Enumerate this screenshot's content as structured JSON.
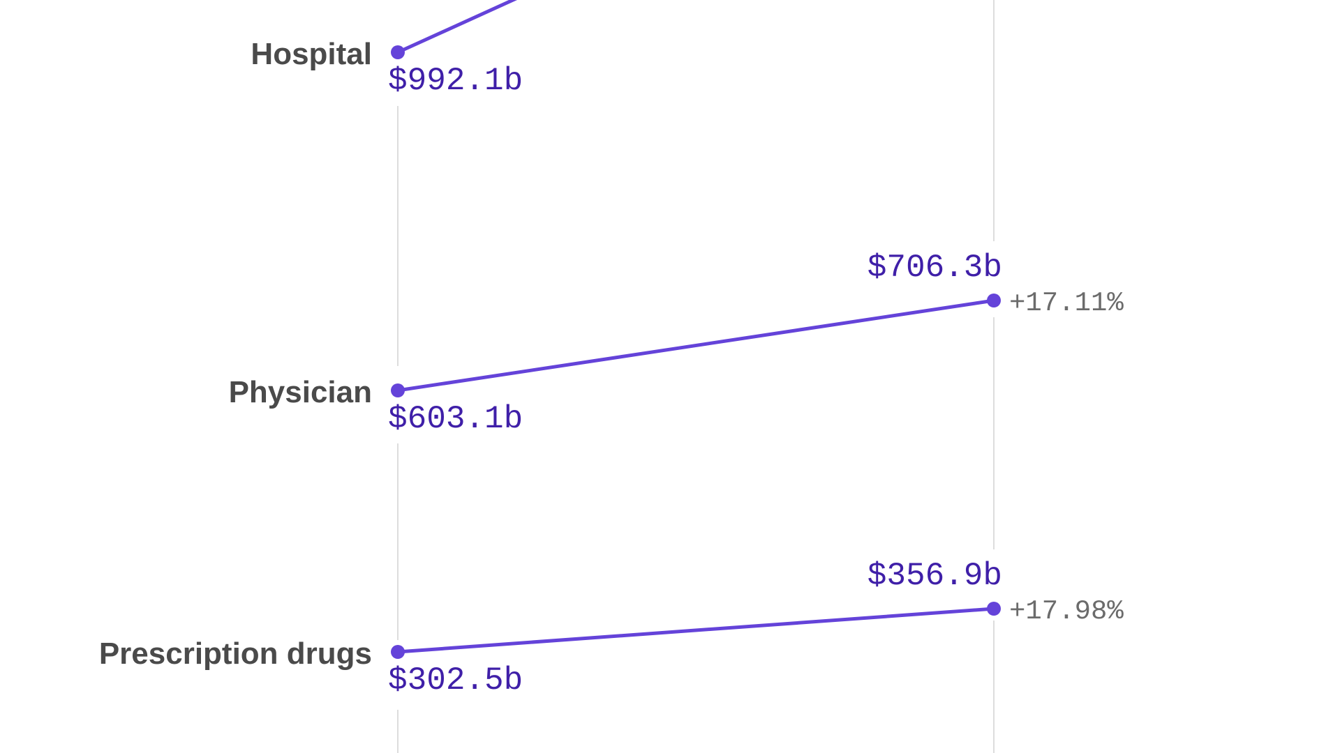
{
  "colors": {
    "line": "#6443d9",
    "point": "#6443d9",
    "value_text": "#3f1fa8",
    "percent_text": "#6b6b6b",
    "category_text": "#4a4a4a",
    "gridline": "#dddddd",
    "background": "#ffffff"
  },
  "chart_data": {
    "type": "line",
    "subtype": "slope",
    "grid": true,
    "series": [
      {
        "name": "Hospital",
        "start": {
          "value": 992.1,
          "label": "$992.1b"
        },
        "end": null
      },
      {
        "name": "Physician",
        "start": {
          "value": 603.1,
          "label": "$603.1b"
        },
        "end": {
          "value": 706.3,
          "label": "$706.3b",
          "change_label": "+17.11%"
        }
      },
      {
        "name": "Prescription drugs",
        "start": {
          "value": 302.5,
          "label": "$302.5b"
        },
        "end": {
          "value": 356.9,
          "label": "$356.9b",
          "change_label": "+17.98%"
        }
      }
    ]
  }
}
